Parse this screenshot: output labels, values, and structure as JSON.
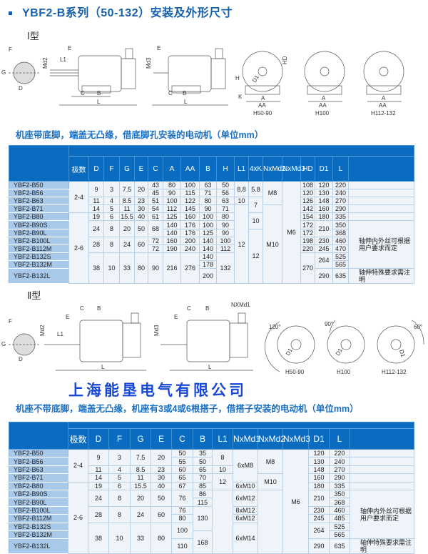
{
  "title": "YBF2-B系列（50-132）安装及外形尺寸",
  "colors": {
    "header_blue": "#0a6cc0",
    "model_col": "#a9c9ea",
    "cell_bg": "#eef4f9",
    "title_blue": "#1560ad",
    "company_blue": "#1848d6"
  },
  "type1": {
    "label": "Ⅰ型",
    "dims": {
      "F": "F",
      "G": "G",
      "D": "D",
      "E": "E",
      "L1": "L1",
      "Md2": "Md2",
      "Md3": "Md3",
      "C": "C",
      "B": "B",
      "L": "L",
      "K": "K",
      "H": "H",
      "HD": "HD",
      "D1": "D1",
      "A": "A",
      "AA": "AA"
    },
    "views": [
      "H50-90",
      "H100",
      "H112-132"
    ],
    "subtitle": "机座带底脚，端盖无凸缘，借底脚孔安装的电动机（单位mm）"
  },
  "type2": {
    "label": "Ⅱ型",
    "dims": {
      "NXMd1": "NXMd1",
      "a120": "120°",
      "a90": "90°",
      "a60": "60°"
    },
    "views": [
      "H50-90",
      "H100",
      "H112-132"
    ],
    "subtitle": "机座不带底脚，端盖无凸缘，机座有3或4或6根搭子，借搭子安装的电动机（单位mm）"
  },
  "company": "上海能垦电气有限公司",
  "table1": {
    "headers": [
      "极数",
      "D",
      "F",
      "G",
      "E",
      "C",
      "A",
      "AA",
      "B",
      "H",
      "L1",
      "4xK",
      "NxMd2",
      "NxMd3",
      "HD",
      "D1",
      "L",
      ""
    ],
    "rows": [
      {
        "model": "YBF2-B50",
        "cells": [
          {
            "t": "2-4",
            "rs": 4
          },
          {
            "t": "9",
            "rs": 2
          },
          {
            "t": "3",
            "rs": 2
          },
          {
            "t": "7.5",
            "rs": 2
          },
          {
            "t": "20",
            "rs": 2
          },
          {
            "t": "43"
          },
          {
            "t": "80"
          },
          {
            "t": "100"
          },
          {
            "t": "63"
          },
          {
            "t": "50"
          },
          {
            "t": "8.8",
            "rs": 2
          },
          {
            "t": "5.8",
            "rs": 2
          },
          {
            "t": "M8",
            "rs": 3
          },
          {
            "t": "M6",
            "rs": 12
          },
          {
            "t": "108"
          },
          {
            "t": "120"
          },
          {
            "t": "220"
          },
          {
            "t": ""
          }
        ]
      },
      {
        "model": "YBF2-B56",
        "cells": [
          {
            "t": "45"
          },
          {
            "t": "90"
          },
          {
            "t": "115"
          },
          {
            "t": "71"
          },
          {
            "t": "56"
          },
          {
            "t": "120"
          },
          {
            "t": "130"
          },
          {
            "t": "240"
          },
          {
            "t": ""
          }
        ]
      },
      {
        "model": "YBF2-B63",
        "cells": [
          {
            "t": "11"
          },
          {
            "t": "4"
          },
          {
            "t": "8.5"
          },
          {
            "t": "23"
          },
          {
            "t": "51"
          },
          {
            "t": "100"
          },
          {
            "t": "122"
          },
          {
            "t": "80"
          },
          {
            "t": "63"
          },
          {
            "t": "10"
          },
          {
            "t": "7",
            "rs": 2
          },
          {
            "t": "126"
          },
          {
            "t": "148"
          },
          {
            "t": "270"
          },
          {
            "t": ""
          }
        ]
      },
      {
        "model": "YBF2-B71",
        "cells": [
          {
            "t": "14"
          },
          {
            "t": "5"
          },
          {
            "t": "11"
          },
          {
            "t": "30"
          },
          {
            "t": "54"
          },
          {
            "t": "112"
          },
          {
            "t": "145"
          },
          {
            "t": "90"
          },
          {
            "t": "71"
          },
          {
            "t": "12",
            "rs": 9
          },
          {
            "t": "M10",
            "rs": 9
          },
          {
            "t": "142"
          },
          {
            "t": "160"
          },
          {
            "t": "290"
          },
          {
            "t": ""
          }
        ]
      },
      {
        "model": "YBF2-B80",
        "cells": [
          {
            "t": "2-6",
            "rs": 8
          },
          {
            "t": "19"
          },
          {
            "t": "6"
          },
          {
            "t": "15.5"
          },
          {
            "t": "40"
          },
          {
            "t": "61"
          },
          {
            "t": "125"
          },
          {
            "t": "160"
          },
          {
            "t": "100"
          },
          {
            "t": "80"
          },
          {
            "t": "10",
            "rs": 2
          },
          {
            "t": "154"
          },
          {
            "t": "180"
          },
          {
            "t": "335"
          },
          {
            "t": ""
          }
        ]
      },
      {
        "model": "YBF2-B90S",
        "cells": [
          {
            "t": "24",
            "rs": 2
          },
          {
            "t": "8",
            "rs": 2
          },
          {
            "t": "20",
            "rs": 2
          },
          {
            "t": "50",
            "rs": 2
          },
          {
            "t": "68",
            "rs": 2
          },
          {
            "t": "140"
          },
          {
            "t": "176"
          },
          {
            "t": "100"
          },
          {
            "t": "90"
          },
          {
            "t": "172"
          },
          {
            "t": "210",
            "rs": 2
          },
          {
            "t": "350"
          },
          {
            "t": "轴伸内外丝可根据用户要求而定",
            "rs": 6,
            "note": true
          }
        ]
      },
      {
        "model": "YBF2-B90L",
        "cells": [
          {
            "t": "140"
          },
          {
            "t": "176"
          },
          {
            "t": "125"
          },
          {
            "t": "90"
          },
          {
            "t": "12",
            "rs": 6
          },
          {
            "t": "172"
          },
          {
            "t": "368"
          }
        ]
      },
      {
        "model": "YBF2-B100L",
        "cells": [
          {
            "t": "28",
            "rs": 2
          },
          {
            "t": "8",
            "rs": 2
          },
          {
            "t": "24",
            "rs": 2
          },
          {
            "t": "60",
            "rs": 2
          },
          {
            "t": "72"
          },
          {
            "t": "160"
          },
          {
            "t": "200"
          },
          {
            "t": "140"
          },
          {
            "t": "100"
          },
          {
            "t": "198"
          },
          {
            "t": "230"
          },
          {
            "t": "460"
          }
        ]
      },
      {
        "model": "YBF2-B112M",
        "cells": [
          {
            "t": "72"
          },
          {
            "t": "190"
          },
          {
            "t": "240"
          },
          {
            "t": "140"
          },
          {
            "t": "112"
          },
          {
            "t": "220"
          },
          {
            "t": "245"
          },
          {
            "t": "470"
          }
        ]
      },
      {
        "model": "YBF2-B132S",
        "cells": [
          {
            "t": "38",
            "rs": 3
          },
          {
            "t": "10",
            "rs": 3
          },
          {
            "t": "33",
            "rs": 3
          },
          {
            "t": "80",
            "rs": 3
          },
          {
            "t": "90",
            "rs": 3
          },
          {
            "t": "216",
            "rs": 3
          },
          {
            "t": "276",
            "rs": 3
          },
          {
            "t": "140"
          },
          {
            "t": "132",
            "rs": 3
          },
          {
            "t": "270",
            "rs": 3
          },
          {
            "t": "264",
            "rs": 2
          },
          {
            "t": "525"
          }
        ]
      },
      {
        "model": "YBF2-B132M",
        "cells": [
          {
            "t": "178"
          },
          {
            "t": "565"
          }
        ]
      },
      {
        "model": "YBF2-B132L",
        "cells": [
          {
            "t": "200"
          },
          {
            "t": "290"
          },
          {
            "t": "635"
          },
          {
            "t": "轴伸特殊要求需注明",
            "note": true
          }
        ]
      }
    ]
  },
  "table2": {
    "headers": [
      "极数",
      "D",
      "F",
      "G",
      "E",
      "C",
      "B",
      "L1",
      "NxMd1",
      "NxMd2",
      "NxMd3",
      "D1",
      "L",
      ""
    ],
    "rows": [
      {
        "model": "YBF2-B50",
        "cells": [
          {
            "t": "2-4",
            "rs": 4
          },
          {
            "t": "9",
            "rs": 2
          },
          {
            "t": "3",
            "rs": 2
          },
          {
            "t": "7.5",
            "rs": 2
          },
          {
            "t": "20",
            "rs": 2
          },
          {
            "t": "50"
          },
          {
            "t": "35"
          },
          {
            "t": "8",
            "rs": 2
          },
          {
            "t": "6xM8",
            "rs": 4
          },
          {
            "t": "M8",
            "rs": 3
          },
          {
            "t": "M6",
            "rs": 12
          },
          {
            "t": "120"
          },
          {
            "t": "220"
          },
          {
            "t": ""
          }
        ]
      },
      {
        "model": "YBF2-B56",
        "cells": [
          {
            "t": "55"
          },
          {
            "t": "50"
          },
          {
            "t": "130"
          },
          {
            "t": "240"
          },
          {
            "t": ""
          }
        ]
      },
      {
        "model": "YBF2-B63",
        "cells": [
          {
            "t": "11"
          },
          {
            "t": "4"
          },
          {
            "t": "8.5"
          },
          {
            "t": "23"
          },
          {
            "t": "60"
          },
          {
            "t": "65"
          },
          {
            "t": "10"
          },
          {
            "t": "148"
          },
          {
            "t": "270"
          },
          {
            "t": ""
          }
        ]
      },
      {
        "model": "YBF2-B71",
        "cells": [
          {
            "t": "14"
          },
          {
            "t": "5"
          },
          {
            "t": "11"
          },
          {
            "t": "30"
          },
          {
            "t": "65"
          },
          {
            "t": "70"
          },
          {
            "t": "12",
            "rs": 2
          },
          {
            "t": "M10",
            "rs": 2
          },
          {
            "t": "160"
          },
          {
            "t": "290"
          },
          {
            "t": ""
          }
        ]
      },
      {
        "model": "YBF2-B80",
        "cells": [
          {
            "t": "2-6",
            "rs": 8
          },
          {
            "t": "19"
          },
          {
            "t": "6"
          },
          {
            "t": "15.5"
          },
          {
            "t": "40"
          },
          {
            "t": "67"
          },
          {
            "t": "85"
          },
          {
            "t": "6xM10"
          },
          {
            "t": "180"
          },
          {
            "t": "335"
          },
          {
            "t": ""
          }
        ]
      },
      {
        "model": "YBF2-B90S",
        "cells": [
          {
            "t": "24",
            "rs": 2
          },
          {
            "t": "8",
            "rs": 2
          },
          {
            "t": "20",
            "rs": 2
          },
          {
            "t": "50",
            "rs": 2
          },
          {
            "t": "76",
            "rs": 2
          },
          {
            "t": "86"
          },
          {
            "t": "",
            "rs": 7
          },
          {
            "t": "6xM12",
            "rs": 2
          },
          {
            "t": "",
            "rs": 7
          },
          {
            "t": "210",
            "rs": 2
          },
          {
            "t": "350"
          },
          {
            "t": "轴伸内外丝可根据用户要求而定",
            "rs": 6,
            "note": true
          }
        ]
      },
      {
        "model": "YBF2-B90L",
        "cells": [
          {
            "t": "115"
          },
          {
            "t": "368"
          }
        ]
      },
      {
        "model": "YBF2-B100L",
        "cells": [
          {
            "t": "28",
            "rs": 2
          },
          {
            "t": "8",
            "rs": 2
          },
          {
            "t": "24",
            "rs": 2
          },
          {
            "t": "60",
            "rs": 2
          },
          {
            "t": "76"
          },
          {
            "t": "130",
            "rs": 3
          },
          {
            "t": "8xM12"
          },
          {
            "t": "230"
          },
          {
            "t": "460"
          }
        ]
      },
      {
        "model": "YBF2-B112M",
        "cells": [
          {
            "t": "80"
          },
          {
            "t": "6xM12"
          },
          {
            "t": "245"
          },
          {
            "t": "485"
          }
        ]
      },
      {
        "model": "YBF2-B132S",
        "cells": [
          {
            "t": "38",
            "rs": 3
          },
          {
            "t": "10",
            "rs": 3
          },
          {
            "t": "33",
            "rs": 3
          },
          {
            "t": "80",
            "rs": 3
          },
          {
            "t": "100",
            "rs": 2
          },
          {
            "t": "6xM14",
            "rs": 3
          },
          {
            "t": "264",
            "rs": 2
          },
          {
            "t": "525"
          }
        ]
      },
      {
        "model": "YBF2-B132M",
        "cells": [
          {
            "t": "168",
            "rs": 2
          },
          {
            "t": "565"
          }
        ]
      },
      {
        "model": "YBF2-B132L",
        "cells": [
          {
            "t": "110"
          },
          {
            "t": "290"
          },
          {
            "t": "635"
          },
          {
            "t": "轴伸特殊要求需注明",
            "note": true
          }
        ]
      }
    ]
  }
}
